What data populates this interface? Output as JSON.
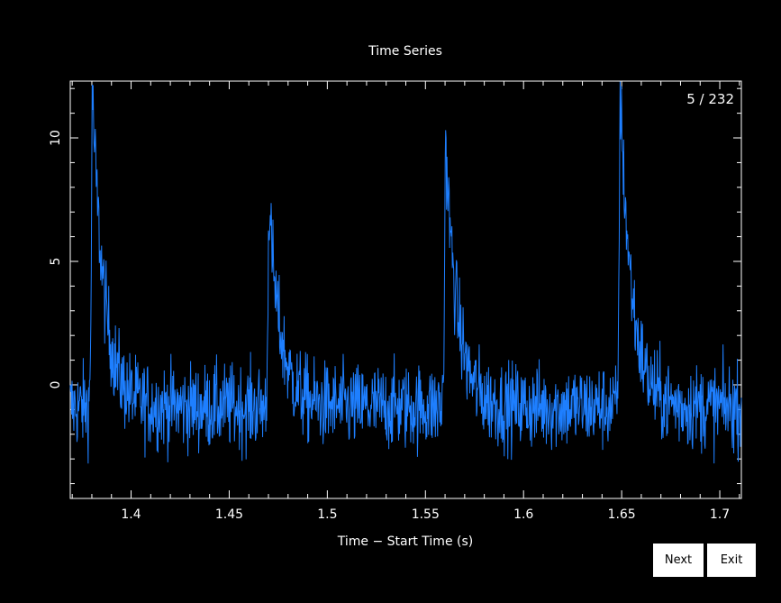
{
  "chart_data": {
    "type": "line",
    "title": "Time Series",
    "xlabel": "Time − Start Time (s)",
    "ylabel": "",
    "xlim": [
      1.369,
      1.711
    ],
    "ylim": [
      -4.6,
      12.3
    ],
    "xticks": [
      1.4,
      1.45,
      1.5,
      1.55,
      1.6,
      1.65,
      1.7
    ],
    "xtick_labels": [
      "1.4",
      "1.45",
      "1.5",
      "1.55",
      "1.6",
      "1.65",
      "1.7"
    ],
    "yticks": [
      0,
      5,
      10
    ],
    "ytick_labels": [
      "0",
      "5",
      "10"
    ],
    "grid": false,
    "line_color": "#1e7fff",
    "axes_color": "#ffffff",
    "background": "#000000",
    "counter": "5 / 232",
    "baseline": -0.9,
    "noise_amplitude": 1.1,
    "pulses": [
      {
        "time": 1.38,
        "peak": 12.3
      },
      {
        "time": 1.47,
        "peak": 7.5
      },
      {
        "time": 1.56,
        "peak": 10.2
      },
      {
        "time": 1.649,
        "peak": 12.3
      }
    ],
    "pulse_decay_s": 0.006
  },
  "buttons": {
    "next_label": "Next",
    "exit_label": "Exit"
  }
}
